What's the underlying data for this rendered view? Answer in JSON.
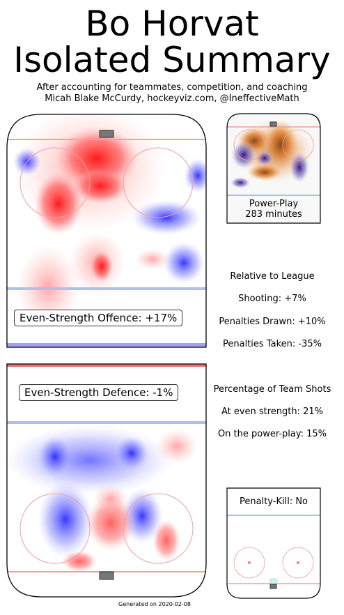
{
  "title_line1": "Bo Horvat",
  "title_line2": "Isolated Summary",
  "subtitle_line1": "After accounting for teammates, competition, and coaching",
  "subtitle_line2": "Micah Blake McCurdy, hockeyviz.com, @IneffectiveMath",
  "colors": {
    "offence_hot": "#ff0000",
    "offence_cold": "#0000ff",
    "pp_hot": "#e07010",
    "pp_cold": "#4030a0",
    "red_line": "#f08080",
    "blue_line": "#a0b0e0"
  },
  "chart_data": [
    {
      "type": "heatmap",
      "label": "Even-Strength Offence: +17%",
      "value_percent": 17
    },
    {
      "type": "heatmap",
      "label": "Even-Strength Defence: -1%",
      "value_percent": -1
    },
    {
      "type": "heatmap",
      "label_line1": "Power-Play",
      "label_line2": "283 minutes",
      "minutes": 283
    },
    {
      "type": "heatmap",
      "label": "Penalty-Kill: No"
    }
  ],
  "relative": {
    "heading": "Relative to League",
    "shooting": "Shooting: +7%",
    "drawn": "Penalties Drawn: +10%",
    "taken": "Penalties Taken: -35%"
  },
  "team_shots": {
    "heading": "Percentage of Team Shots",
    "even": "At even strength: 21%",
    "pp": "On the power-play: 15%"
  },
  "footer": "Generated on 2020-02-08"
}
